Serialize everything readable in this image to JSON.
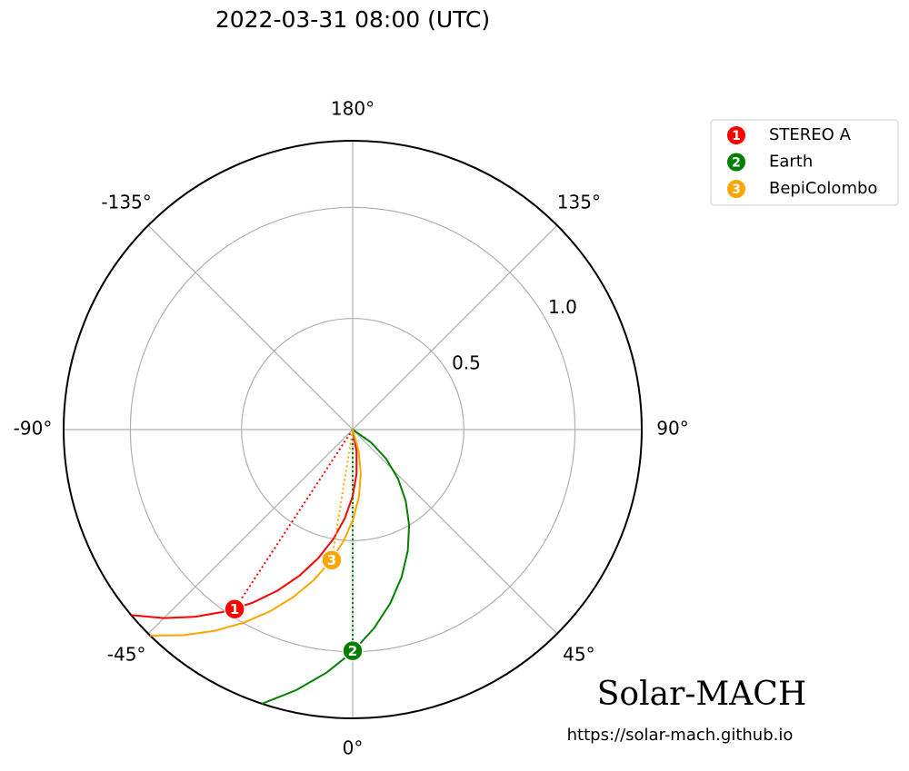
{
  "chart_data": {
    "type": "polar",
    "title": "2022-03-31 08:00 (UTC)",
    "rlim": [
      0,
      1.3
    ],
    "rticks": [
      0.5,
      {
        "value": 1,
        "label": "1.0"
      }
    ],
    "thetaticks": [
      {
        "value": 0,
        "label": "0°"
      },
      {
        "value": 45,
        "label": "45°"
      },
      {
        "value": 90,
        "label": "90°"
      },
      {
        "value": 135,
        "label": "135°"
      },
      {
        "value": 180,
        "label": "180°"
      },
      {
        "value": -135,
        "label": "-135°"
      },
      {
        "value": -90,
        "label": "-90°"
      },
      {
        "value": -45,
        "label": "-45°"
      }
    ],
    "grid": true,
    "legend": "upper right",
    "series": [
      {
        "name": "STEREO A",
        "marker": "1",
        "color": "#ff0000",
        "longitude": -33.3,
        "radius": 0.967,
        "field_line": {
          "theta": [
            15,
            10,
            5,
            0,
            -5,
            -10,
            -15,
            -20,
            -25,
            -30,
            -35,
            -40,
            -45,
            -50
          ],
          "r": [
            0,
            0.1,
            0.2,
            0.3,
            0.4,
            0.5,
            0.6,
            0.7,
            0.8,
            0.9,
            1.0,
            1.1,
            1.2,
            1.3
          ]
        }
      },
      {
        "name": "Earth",
        "marker": "2",
        "color": "#008000",
        "longitude": 0,
        "radius": 0.996,
        "field_line": {
          "theta": [
            61,
            54.9,
            48.8,
            42.7,
            36.6,
            30.5,
            24.4,
            18.3,
            12.2,
            6.1,
            0,
            -6.1,
            -12.2,
            -18.3
          ],
          "r": [
            0,
            0.1,
            0.2,
            0.3,
            0.4,
            0.5,
            0.6,
            0.7,
            0.8,
            0.9,
            1.0,
            1.1,
            1.2,
            1.3
          ]
        }
      },
      {
        "name": "BepiColombo",
        "marker": "3",
        "color": "#ffa500",
        "longitude": -9.1,
        "radius": 0.595,
        "field_line": {
          "theta": [
            20.5,
            15.5,
            10.5,
            5.5,
            0.5,
            -4.5,
            -9.5,
            -14.5,
            -19.5,
            -24.5,
            -29.5,
            -34.5,
            -39.5,
            -44.5
          ],
          "r": [
            0,
            0.1,
            0.2,
            0.3,
            0.4,
            0.5,
            0.6,
            0.7,
            0.8,
            0.9,
            1.0,
            1.1,
            1.2,
            1.3
          ]
        }
      }
    ]
  },
  "branding": {
    "name": "Solar-MACH",
    "url": "https://solar-mach.github.io"
  }
}
